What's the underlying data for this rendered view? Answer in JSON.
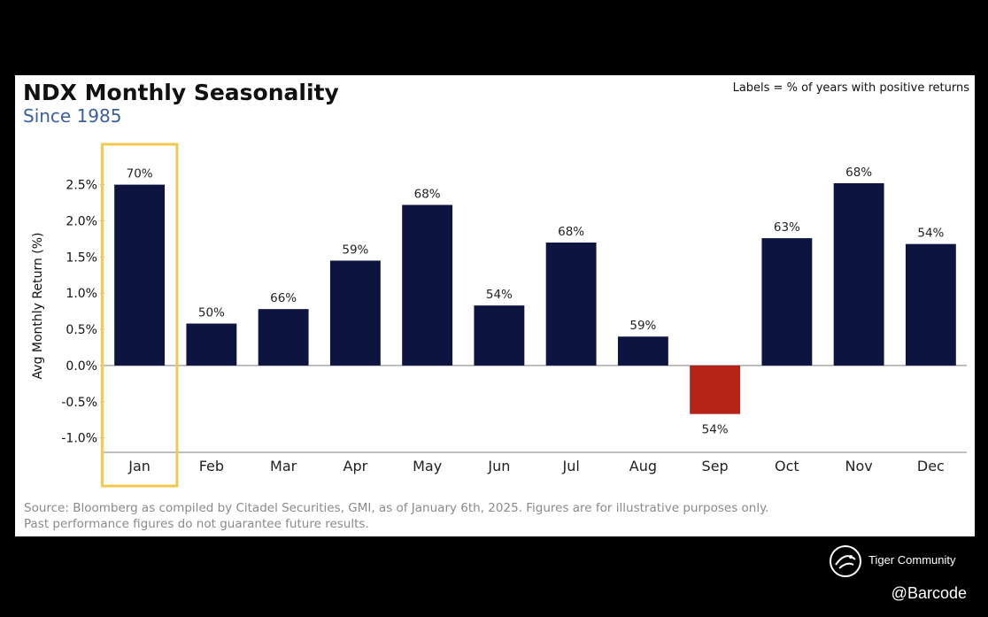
{
  "chart_data": {
    "type": "bar",
    "title": "NDX Monthly Seasonality",
    "subtitle": "Since 1985",
    "note": "Labels = % of years with positive returns",
    "ylabel": "Avg Monthly Return (%)",
    "xlabel": "",
    "categories": [
      "Jan",
      "Feb",
      "Mar",
      "Apr",
      "May",
      "Jun",
      "Jul",
      "Aug",
      "Sep",
      "Oct",
      "Nov",
      "Dec"
    ],
    "values": [
      2.5,
      0.58,
      0.78,
      1.45,
      2.22,
      0.83,
      1.7,
      0.4,
      -0.67,
      1.76,
      2.52,
      1.68
    ],
    "data_labels": [
      "70%",
      "50%",
      "66%",
      "59%",
      "68%",
      "54%",
      "68%",
      "59%",
      "54%",
      "63%",
      "68%",
      "54%"
    ],
    "yticks": [
      -1.0,
      -0.5,
      0.0,
      0.5,
      1.0,
      1.5,
      2.0,
      2.5
    ],
    "ytick_labels": [
      "-1.0%",
      "-0.5%",
      "0.0%",
      "0.5%",
      "1.0%",
      "1.5%",
      "2.0%",
      "2.5%"
    ],
    "ylim": [
      -1.2,
      2.85
    ],
    "highlighted_category": "Jan",
    "grid": false,
    "colors": {
      "positive": "#0d1440",
      "negative": "#b52216",
      "highlight": "#f2c94c",
      "axis": "#aaaaaa"
    },
    "source": [
      "Source: Bloomberg as compiled by Citadel Securities, GMI, as of January 6th, 2025. Figures are for illustrative purposes only.",
      "Past performance figures do not guarantee future results."
    ]
  },
  "watermark": {
    "brand": "Tiger Community",
    "handle": "@Barcode",
    "logo_icon": "tiger-community-logo-icon"
  }
}
